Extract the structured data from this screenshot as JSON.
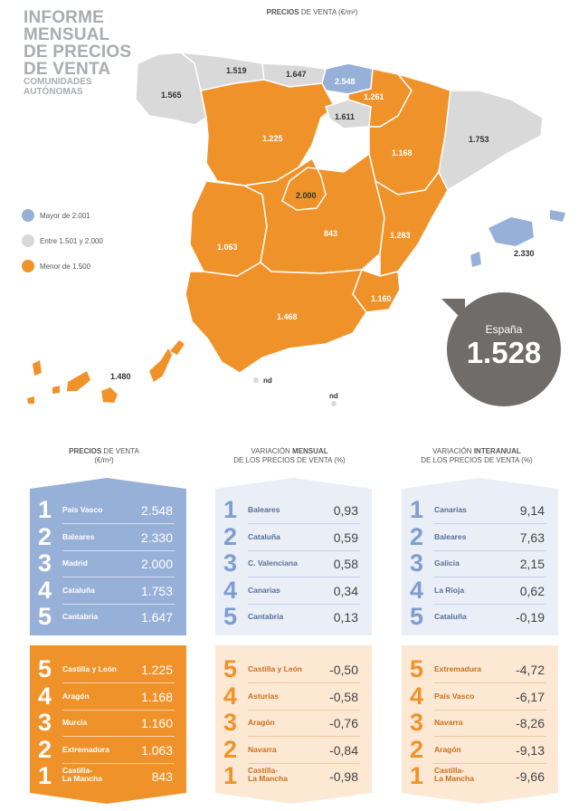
{
  "header": {
    "title_lines": [
      "INFORME",
      "MENSUAL",
      "DE PRECIOS",
      "DE VENTA"
    ],
    "subtitle_lines": [
      "COMUNIDADES",
      "AUTÓNOMAS"
    ],
    "map_title_bold": "PRECIOS",
    "map_title_rest": " DE VENTA (€/m²)"
  },
  "colors": {
    "blue": "#97b0d8",
    "grey": "#d9d9d9",
    "orange": "#f0922a",
    "bubble": "#6f6c69",
    "pale_blue": "#e9eef7",
    "pale_orange": "#fde8d4"
  },
  "legend": [
    {
      "label": "Mayor de 2.001",
      "color": "#97b0d8"
    },
    {
      "label": "Entre 1.501 y 2.000",
      "color": "#d9d9d9"
    },
    {
      "label": "Menor de 1.500",
      "color": "#f0922a"
    }
  ],
  "map_labels": {
    "galicia": "1.565",
    "asturias": "1.519",
    "cantabria": "1.647",
    "pais_vasco": "2.548",
    "navarra": "1.261",
    "la_rioja": "1.611",
    "castilla_leon": "1.225",
    "aragon": "1.168",
    "cataluna": "1.753",
    "madrid": "2.000",
    "castilla_la_mancha": "843",
    "valencia": "1.283",
    "extremadura": "1.063",
    "murcia": "1.160",
    "andalucia": "1.468",
    "baleares": "2.330",
    "canarias": "1.480",
    "ceuta": "nd",
    "melilla": "nd"
  },
  "spain": {
    "label": "España",
    "value": "1.528"
  },
  "columns": [
    {
      "title_line1_prefix": "",
      "title_line1_bold": "PRECIOS",
      "title_line1_suffix": " DE VENTA",
      "title_line2": "(€/m²)",
      "top": [
        {
          "rank": "1",
          "name": "País Vasco",
          "value": "2.548"
        },
        {
          "rank": "2",
          "name": "Baleares",
          "value": "2.330"
        },
        {
          "rank": "3",
          "name": "Madrid",
          "value": "2.000"
        },
        {
          "rank": "4",
          "name": "Cataluña",
          "value": "1.753"
        },
        {
          "rank": "5",
          "name": "Cantabria",
          "value": "1.647"
        }
      ],
      "bottom": [
        {
          "rank": "5",
          "name": "Castilla y León",
          "value": "1.225"
        },
        {
          "rank": "4",
          "name": "Aragón",
          "value": "1.168"
        },
        {
          "rank": "3",
          "name": "Murcia",
          "value": "1.160"
        },
        {
          "rank": "2",
          "name": "Extremadura",
          "value": "1.063"
        },
        {
          "rank": "1",
          "name": "Castilla-\nLa Mancha",
          "value": "843"
        }
      ]
    },
    {
      "title_line1_prefix": "VARIACIÓN ",
      "title_line1_bold": "MENSUAL",
      "title_line1_suffix": "",
      "title_line2": "DE LOS PRECIOS DE VENTA (%)",
      "top": [
        {
          "rank": "1",
          "name": "Baleares",
          "value": "0,93"
        },
        {
          "rank": "2",
          "name": "Cataluña",
          "value": "0,59"
        },
        {
          "rank": "3",
          "name": "C. Valenciana",
          "value": "0,58"
        },
        {
          "rank": "4",
          "name": "Canarias",
          "value": "0,34"
        },
        {
          "rank": "5",
          "name": "Cantabria",
          "value": "0,13"
        }
      ],
      "bottom": [
        {
          "rank": "5",
          "name": "Castilla y León",
          "value": "-0,50"
        },
        {
          "rank": "4",
          "name": "Asturias",
          "value": "-0,58"
        },
        {
          "rank": "3",
          "name": "Aragón",
          "value": "-0,76"
        },
        {
          "rank": "2",
          "name": "Navarra",
          "value": "-0,84"
        },
        {
          "rank": "1",
          "name": "Castilla-\nLa Mancha",
          "value": "-0,98"
        }
      ]
    },
    {
      "title_line1_prefix": "VARIACIÓN ",
      "title_line1_bold": "INTERANUAL",
      "title_line1_suffix": "",
      "title_line2": "DE LOS PRECIOS DE VENTA (%)",
      "top": [
        {
          "rank": "1",
          "name": "Canarias",
          "value": "9,14"
        },
        {
          "rank": "2",
          "name": "Baleares",
          "value": "7,63"
        },
        {
          "rank": "3",
          "name": "Galicia",
          "value": "2,15"
        },
        {
          "rank": "4",
          "name": "La Rioja",
          "value": "0,62"
        },
        {
          "rank": "5",
          "name": "Cataluña",
          "value": "-0,19"
        }
      ],
      "bottom": [
        {
          "rank": "5",
          "name": "Extremadura",
          "value": "-4,72"
        },
        {
          "rank": "4",
          "name": "País Vasco",
          "value": "-6,17"
        },
        {
          "rank": "3",
          "name": "Navarra",
          "value": "-8,26"
        },
        {
          "rank": "2",
          "name": "Aragón",
          "value": "-9,13"
        },
        {
          "rank": "1",
          "name": "Castilla-\nLa Mancha",
          "value": "-9,66"
        }
      ]
    }
  ]
}
